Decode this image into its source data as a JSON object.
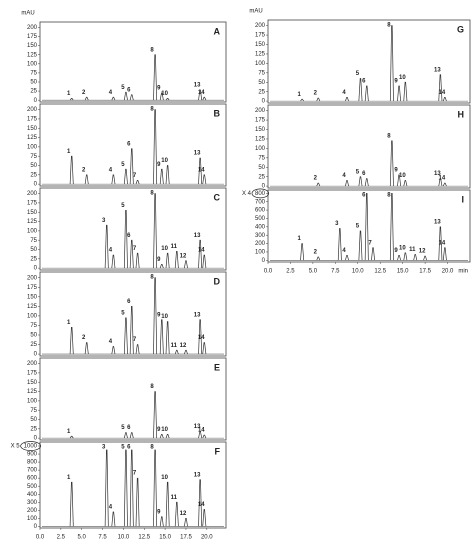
{
  "chart_data": [
    {
      "type": "chromatogram",
      "ylabel": "mAU",
      "panel": "A",
      "xlim": [
        0,
        22.3
      ],
      "ylim": [
        -5,
        215
      ],
      "yticks": [
        0,
        25,
        50,
        75,
        100,
        125,
        150,
        175,
        200
      ],
      "x": [
        3.8,
        5.6,
        8.8,
        10.3,
        11.0,
        13.8,
        14.6,
        15.3,
        19.2,
        19.7
      ],
      "values": [
        5,
        8,
        8,
        22,
        15,
        125,
        20,
        5,
        28,
        8
      ],
      "labels": [
        "1",
        "2",
        "4",
        "5",
        "6",
        "8",
        "9",
        "10",
        "13",
        "14"
      ]
    },
    {
      "type": "chromatogram",
      "panel": "B",
      "xlim": [
        0,
        22.3
      ],
      "ylim": [
        -5,
        215
      ],
      "yticks": [
        0,
        25,
        50,
        75,
        100,
        125,
        150,
        175,
        200
      ],
      "x": [
        3.8,
        5.6,
        8.8,
        10.3,
        11.0,
        11.7,
        13.8,
        14.6,
        15.3,
        19.2,
        19.7
      ],
      "values": [
        75,
        25,
        25,
        40,
        95,
        10,
        200,
        40,
        50,
        70,
        25
      ],
      "labels": [
        "1",
        "2",
        "4",
        "5",
        "6",
        "7",
        "8",
        "9",
        "10",
        "13",
        "14"
      ]
    },
    {
      "type": "chromatogram",
      "panel": "C",
      "xlim": [
        0,
        22.3
      ],
      "ylim": [
        -5,
        215
      ],
      "yticks": [
        0,
        25,
        50,
        75,
        100,
        125,
        150,
        175,
        200
      ],
      "x": [
        8.0,
        8.8,
        10.3,
        11.0,
        11.7,
        13.8,
        14.6,
        15.3,
        16.4,
        17.5,
        19.2,
        19.7
      ],
      "values": [
        115,
        35,
        155,
        75,
        40,
        200,
        10,
        40,
        45,
        20,
        75,
        35
      ],
      "labels": [
        "3",
        "4",
        "5",
        "6",
        "7",
        "8",
        "9",
        "10",
        "11",
        "12",
        "13",
        "14"
      ]
    },
    {
      "type": "chromatogram",
      "panel": "D",
      "xlim": [
        0,
        22.3
      ],
      "ylim": [
        -5,
        215
      ],
      "yticks": [
        0,
        25,
        50,
        75,
        100,
        125,
        150,
        175,
        200
      ],
      "x": [
        3.8,
        5.6,
        8.8,
        10.3,
        11.0,
        11.7,
        13.8,
        14.6,
        15.3,
        16.4,
        17.5,
        19.2,
        19.7
      ],
      "values": [
        70,
        30,
        20,
        95,
        125,
        25,
        200,
        90,
        85,
        10,
        10,
        90,
        30
      ],
      "labels": [
        "1",
        "2",
        "4",
        "5",
        "6",
        "7",
        "8",
        "9",
        "10",
        "11",
        "12",
        "13",
        "14"
      ]
    },
    {
      "type": "chromatogram",
      "panel": "E",
      "xlim": [
        0,
        22.3
      ],
      "ylim": [
        -5,
        215
      ],
      "yticks": [
        0,
        25,
        50,
        75,
        100,
        125,
        150,
        175,
        200
      ],
      "x": [
        3.8,
        10.3,
        11.0,
        13.8,
        14.6,
        15.3,
        19.2,
        19.7
      ],
      "values": [
        5,
        15,
        15,
        125,
        10,
        10,
        18,
        8
      ],
      "labels": [
        "1",
        "5",
        "6",
        "8",
        "9",
        "10",
        "13",
        "14"
      ]
    },
    {
      "type": "chromatogram",
      "panel": "F",
      "scale_note": "X 5",
      "xlim": [
        0,
        22.3
      ],
      "ylim": [
        -20,
        1050
      ],
      "yticks": [
        0,
        100,
        200,
        300,
        400,
        500,
        600,
        700,
        800,
        900,
        1000
      ],
      "xticks": [
        {
          "value": 0,
          "label": "0.0"
        },
        2.5,
        {
          "value": 5,
          "label": "5.0"
        },
        7.5,
        {
          "value": 10,
          "label": "10.0"
        },
        12.5,
        {
          "value": 15,
          "label": "15.0"
        },
        17.5,
        {
          "value": 20,
          "label": "20.0"
        }
      ],
      "x": [
        3.8,
        8.0,
        8.8,
        10.3,
        11.0,
        11.7,
        13.8,
        14.6,
        15.3,
        16.4,
        17.5,
        19.2,
        19.7
      ],
      "values": [
        550,
        950,
        180,
        950,
        950,
        600,
        950,
        120,
        550,
        300,
        100,
        580,
        210
      ],
      "labels": [
        "1",
        "3",
        "4",
        "5",
        "6",
        "7",
        "8",
        "9",
        "10",
        "11",
        "12",
        "13",
        "14"
      ]
    },
    {
      "type": "chromatogram",
      "ylabel": "mAU",
      "panel": "G",
      "xlim": [
        0,
        22.5
      ],
      "ylim": [
        -5,
        215
      ],
      "yticks": [
        0,
        25,
        50,
        75,
        100,
        125,
        150,
        175,
        200
      ],
      "x": [
        3.8,
        5.6,
        8.8,
        10.3,
        11.0,
        13.8,
        14.6,
        15.3,
        19.2,
        19.7
      ],
      "values": [
        5,
        8,
        10,
        60,
        40,
        200,
        40,
        50,
        70,
        10
      ],
      "labels": [
        "1",
        "2",
        "4",
        "5",
        "6",
        "8",
        "9",
        "10",
        "13",
        "14"
      ]
    },
    {
      "type": "chromatogram",
      "panel": "H",
      "xlim": [
        0,
        22.5
      ],
      "ylim": [
        -5,
        215
      ],
      "yticks": [
        0,
        25,
        50,
        75,
        100,
        125,
        150,
        175,
        200
      ],
      "x": [
        5.6,
        8.8,
        10.3,
        11.0,
        13.8,
        14.6,
        15.3,
        19.2,
        19.7
      ],
      "values": [
        8,
        15,
        25,
        20,
        120,
        30,
        15,
        20,
        8
      ],
      "labels": [
        "2",
        "4",
        "5",
        "6",
        "8",
        "9",
        "10",
        "13",
        "14"
      ]
    },
    {
      "type": "chromatogram",
      "panel": "I",
      "scale_note": "X 4",
      "xlabel": "min",
      "xlim": [
        0,
        22.5
      ],
      "ylim": [
        -20,
        840
      ],
      "yticks": [
        0,
        100,
        200,
        300,
        400,
        500,
        600,
        700,
        800
      ],
      "xticks": [
        {
          "value": 0,
          "label": "0.0"
        },
        2.5,
        {
          "value": 5,
          "label": "5.0"
        },
        7.5,
        {
          "value": 10,
          "label": "10.0"
        },
        12.5,
        {
          "value": 15,
          "label": "15.0"
        },
        17.5,
        {
          "value": 20,
          "label": "20.0"
        }
      ],
      "x": [
        3.8,
        5.6,
        8.0,
        8.8,
        10.3,
        11.0,
        11.7,
        13.8,
        14.6,
        15.3,
        16.4,
        17.5,
        19.2,
        19.7
      ],
      "values": [
        200,
        40,
        380,
        60,
        350,
        800,
        150,
        800,
        60,
        90,
        70,
        50,
        400,
        150
      ],
      "labels": [
        "1",
        "2",
        "3",
        "4",
        "5",
        "6",
        "7",
        "8",
        "9",
        "10",
        "11",
        "12",
        "13",
        "14"
      ]
    }
  ]
}
